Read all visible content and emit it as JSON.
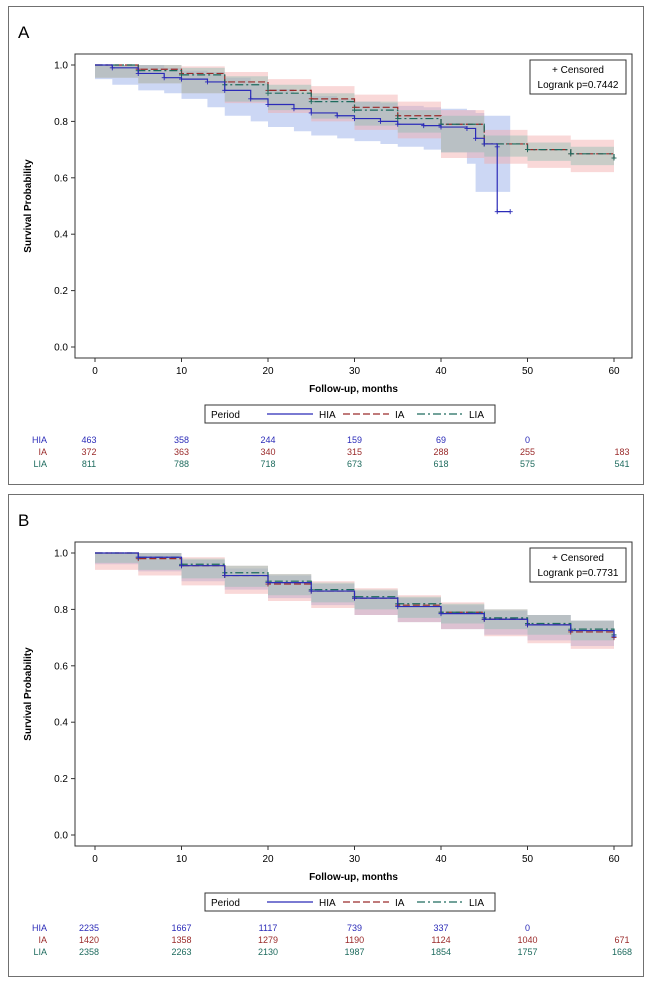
{
  "colors": {
    "HIA": "#2b2bb8",
    "IA": "#9a2a2a",
    "LIA": "#1e6b5e",
    "HIA_band": "#8fa6e6",
    "IA_band": "#f2a8a8",
    "LIA_band": "#8fbfb3"
  },
  "chart_data": [
    {
      "id": "A",
      "type": "line",
      "panel_label": "A",
      "xlabel": "Follow-up, months",
      "ylabel": "Survival Probability",
      "xlim": [
        0,
        60
      ],
      "ylim": [
        0,
        1.0
      ],
      "xticks": [
        "0",
        "10",
        "20",
        "30",
        "40",
        "50",
        "60"
      ],
      "yticks": [
        "0.0",
        "0.2",
        "0.4",
        "0.6",
        "0.8",
        "1.0"
      ],
      "legend_box": {
        "censored": "+ Censored",
        "logrank": "Logrank p=0.7442"
      },
      "bottom_legend": {
        "title": "Period",
        "entries": [
          "HIA",
          "IA",
          "LIA"
        ]
      },
      "series": [
        {
          "name": "HIA",
          "x": [
            0,
            2,
            5,
            8,
            10,
            13,
            15,
            18,
            20,
            23,
            25,
            28,
            30,
            33,
            35,
            38,
            40,
            43,
            44,
            45,
            46.5,
            46.5,
            48
          ],
          "y": [
            1.0,
            0.99,
            0.97,
            0.955,
            0.95,
            0.94,
            0.91,
            0.88,
            0.86,
            0.845,
            0.83,
            0.82,
            0.81,
            0.8,
            0.79,
            0.785,
            0.78,
            0.775,
            0.74,
            0.72,
            0.71,
            0.48,
            0.48
          ],
          "lower": [
            1.0,
            0.95,
            0.93,
            0.91,
            0.9,
            0.88,
            0.85,
            0.82,
            0.8,
            0.78,
            0.765,
            0.75,
            0.74,
            0.73,
            0.72,
            0.71,
            0.7,
            0.69,
            0.65,
            0.55,
            0.55,
            0.55,
            0.55
          ],
          "upper": [
            1.0,
            1.0,
            1.0,
            0.99,
            0.98,
            0.975,
            0.955,
            0.935,
            0.915,
            0.9,
            0.89,
            0.88,
            0.87,
            0.865,
            0.855,
            0.85,
            0.845,
            0.84,
            0.83,
            0.82,
            0.82,
            0.82,
            0.82
          ]
        },
        {
          "name": "IA",
          "x": [
            0,
            5,
            10,
            15,
            20,
            25,
            30,
            35,
            40,
            45,
            50,
            55,
            60
          ],
          "y": [
            1.0,
            0.985,
            0.97,
            0.94,
            0.91,
            0.88,
            0.85,
            0.82,
            0.79,
            0.72,
            0.7,
            0.685,
            0.67
          ],
          "lower": [
            0.95,
            0.955,
            0.935,
            0.9,
            0.865,
            0.83,
            0.8,
            0.77,
            0.74,
            0.67,
            0.65,
            0.635,
            0.62
          ],
          "upper": [
            1.0,
            1.0,
            0.995,
            0.975,
            0.95,
            0.925,
            0.895,
            0.87,
            0.84,
            0.77,
            0.75,
            0.735,
            0.72
          ]
        },
        {
          "name": "LIA",
          "x": [
            0,
            5,
            10,
            15,
            20,
            25,
            30,
            35,
            40,
            45,
            50,
            55,
            60
          ],
          "y": [
            1.0,
            0.98,
            0.965,
            0.93,
            0.9,
            0.87,
            0.84,
            0.81,
            0.79,
            0.72,
            0.7,
            0.685,
            0.67
          ],
          "lower": [
            0.9,
            0.955,
            0.935,
            0.9,
            0.87,
            0.84,
            0.81,
            0.785,
            0.76,
            0.69,
            0.675,
            0.66,
            0.645
          ],
          "upper": [
            1.0,
            1.0,
            0.99,
            0.96,
            0.93,
            0.9,
            0.87,
            0.84,
            0.82,
            0.75,
            0.725,
            0.71,
            0.695
          ]
        }
      ],
      "risk_table": {
        "x": [
          0,
          10,
          20,
          30,
          40,
          50,
          60
        ],
        "rows": [
          {
            "name": "HIA",
            "values": [
              "463",
              "358",
              "244",
              "159",
              "69",
              "0",
              ""
            ]
          },
          {
            "name": "IA",
            "values": [
              "372",
              "363",
              "340",
              "315",
              "288",
              "255",
              "183"
            ]
          },
          {
            "name": "LIA",
            "values": [
              "811",
              "788",
              "718",
              "673",
              "618",
              "575",
              "541"
            ]
          }
        ]
      }
    },
    {
      "id": "B",
      "type": "line",
      "panel_label": "B",
      "xlabel": "Follow-up, months",
      "ylabel": "Survival Probability",
      "xlim": [
        0,
        60
      ],
      "ylim": [
        0,
        1.0
      ],
      "xticks": [
        "0",
        "10",
        "20",
        "30",
        "40",
        "50",
        "60"
      ],
      "yticks": [
        "0.0",
        "0.2",
        "0.4",
        "0.6",
        "0.8",
        "1.0"
      ],
      "legend_box": {
        "censored": "+ Censored",
        "logrank": "Logrank p=0.7731"
      },
      "bottom_legend": {
        "title": "Period",
        "entries": [
          "HIA",
          "IA",
          "LIA"
        ]
      },
      "series": [
        {
          "name": "HIA",
          "x": [
            0,
            5,
            10,
            15,
            20,
            25,
            30,
            35,
            40,
            45,
            50,
            55,
            60
          ],
          "y": [
            1.0,
            0.985,
            0.955,
            0.92,
            0.895,
            0.865,
            0.84,
            0.81,
            0.785,
            0.765,
            0.745,
            0.725,
            0.705
          ],
          "lower": [
            0.96,
            0.96,
            0.935,
            0.9,
            0.87,
            0.84,
            0.815,
            0.78,
            0.755,
            0.73,
            0.71,
            0.69,
            0.67
          ],
          "upper": [
            1.0,
            1.0,
            0.975,
            0.945,
            0.92,
            0.89,
            0.865,
            0.84,
            0.815,
            0.795,
            0.78,
            0.76,
            0.745
          ]
        },
        {
          "name": "IA",
          "x": [
            0,
            5,
            10,
            15,
            20,
            25,
            30,
            35,
            40,
            45,
            50,
            55,
            60
          ],
          "y": [
            1.0,
            0.98,
            0.955,
            0.92,
            0.89,
            0.865,
            0.84,
            0.815,
            0.79,
            0.765,
            0.745,
            0.72,
            0.7
          ],
          "lower": [
            0.93,
            0.94,
            0.92,
            0.885,
            0.855,
            0.83,
            0.805,
            0.78,
            0.755,
            0.73,
            0.705,
            0.68,
            0.66
          ],
          "upper": [
            1.0,
            1.0,
            0.985,
            0.955,
            0.925,
            0.9,
            0.875,
            0.85,
            0.825,
            0.8,
            0.78,
            0.76,
            0.74
          ]
        },
        {
          "name": "LIA",
          "x": [
            0,
            5,
            10,
            15,
            20,
            25,
            30,
            35,
            40,
            45,
            50,
            55,
            60
          ],
          "y": [
            1.0,
            0.985,
            0.96,
            0.93,
            0.9,
            0.87,
            0.845,
            0.82,
            0.79,
            0.77,
            0.75,
            0.73,
            0.71
          ],
          "lower": [
            0.96,
            0.965,
            0.94,
            0.91,
            0.88,
            0.85,
            0.825,
            0.8,
            0.77,
            0.75,
            0.73,
            0.71,
            0.69
          ],
          "upper": [
            1.0,
            1.0,
            0.98,
            0.955,
            0.925,
            0.895,
            0.87,
            0.845,
            0.82,
            0.8,
            0.78,
            0.76,
            0.74
          ]
        }
      ],
      "risk_table": {
        "x": [
          0,
          10,
          20,
          30,
          40,
          50,
          60
        ],
        "rows": [
          {
            "name": "HIA",
            "values": [
              "2235",
              "1667",
              "1117",
              "739",
              "337",
              "0",
              ""
            ]
          },
          {
            "name": "IA",
            "values": [
              "1420",
              "1358",
              "1279",
              "1190",
              "1124",
              "1040",
              "671"
            ]
          },
          {
            "name": "LIA",
            "values": [
              "2358",
              "2263",
              "2130",
              "1987",
              "1854",
              "1757",
              "1668"
            ]
          }
        ]
      }
    }
  ]
}
